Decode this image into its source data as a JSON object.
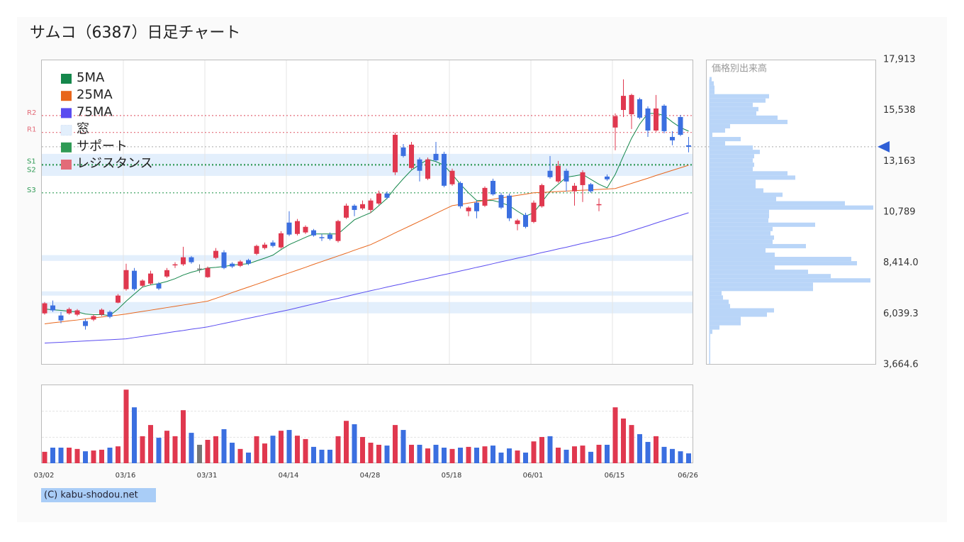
{
  "chart_data": [
    {
      "type": "candlestick",
      "title": "サムコ（6387）日足チャート",
      "ylim": [
        3664.6,
        17913
      ],
      "yticks": [
        {
          "value": 17913,
          "label": "17,913"
        },
        {
          "value": 15538,
          "label": "15,538"
        },
        {
          "value": 13163,
          "label": "13,163"
        },
        {
          "value": 10789,
          "label": "10,789"
        },
        {
          "value": 8414.0,
          "label": "8,414.0"
        },
        {
          "value": 6039.3,
          "label": "6,039.3"
        },
        {
          "value": 3664.6,
          "label": "3,664.6"
        }
      ],
      "colors": {
        "up": "#e0384f",
        "down": "#3b6fe0",
        "flat": "#777777"
      },
      "open": [
        6060,
        6430,
        5960,
        6060,
        6000,
        5700,
        5770,
        6000,
        6130,
        6560,
        7190,
        8050,
        7350,
        7450,
        7450,
        7780,
        8310,
        8350,
        8680,
        8150,
        7750,
        8650,
        8910,
        8380,
        8280,
        8550,
        8840,
        9110,
        9370,
        9140,
        10300,
        9770,
        9840,
        9940,
        9620,
        9740,
        9440,
        10530,
        11090,
        10960,
        10890,
        11190,
        11660,
        12650,
        13810,
        12850,
        13250,
        12350,
        13510,
        13510,
        12090,
        12150,
        10830,
        11230,
        11090,
        12250,
        11590,
        11560,
        10230,
        10660,
        10330,
        11060,
        12720,
        12220,
        12720,
        11760,
        12050,
        12090,
        11130,
        12450,
        14740,
        15560,
        15360,
        16060,
        15630,
        14600,
        15760,
        14300,
        15230,
        13910
      ],
      "high": [
        6590,
        6660,
        6130,
        6330,
        6260,
        5800,
        6000,
        6290,
        6200,
        6960,
        8380,
        8180,
        7650,
        8050,
        7520,
        8180,
        8450,
        9170,
        8740,
        8350,
        8250,
        9110,
        9010,
        8450,
        8550,
        8610,
        9270,
        9370,
        9470,
        9900,
        10830,
        10470,
        10170,
        10000,
        9770,
        9840,
        10430,
        11190,
        11160,
        11330,
        11430,
        11790,
        11760,
        14500,
        13970,
        14070,
        13340,
        13340,
        14070,
        13610,
        12820,
        12220,
        11060,
        11330,
        11990,
        12350,
        11690,
        11660,
        10470,
        10760,
        11330,
        12120,
        13410,
        13180,
        12820,
        12150,
        12750,
        12150,
        11430,
        12550,
        15400,
        16990,
        16320,
        16130,
        15730,
        16260,
        15830,
        14570,
        15330,
        14300
      ],
      "low": [
        6000,
        6130,
        5600,
        6000,
        5930,
        5300,
        5700,
        5930,
        5830,
        6530,
        7120,
        7120,
        7290,
        7390,
        7150,
        7720,
        8180,
        8280,
        8380,
        7950,
        7720,
        8580,
        8120,
        8180,
        8220,
        8310,
        8780,
        9040,
        9140,
        9080,
        9670,
        9700,
        9770,
        9640,
        9440,
        9470,
        9370,
        10470,
        10600,
        10890,
        10760,
        11130,
        11390,
        12520,
        13340,
        12780,
        12220,
        12290,
        13150,
        11950,
        12020,
        10960,
        10600,
        10500,
        11030,
        11560,
        10930,
        10370,
        9940,
        10030,
        10270,
        11000,
        12350,
        12150,
        11760,
        11090,
        11260,
        11690,
        10830,
        12250,
        13680,
        15230,
        14670,
        15130,
        14300,
        14540,
        14470,
        13910,
        14340,
        13580
      ],
      "close": [
        6530,
        6200,
        5730,
        6260,
        6200,
        5470,
        5930,
        6230,
        5900,
        6890,
        8080,
        7190,
        7590,
        7920,
        7220,
        8080,
        8350,
        8680,
        8450,
        8150,
        8180,
        8980,
        8180,
        8250,
        8480,
        8380,
        9210,
        9270,
        9210,
        9800,
        9740,
        10370,
        10100,
        9700,
        9600,
        9540,
        10370,
        11090,
        10890,
        11160,
        11330,
        11660,
        11460,
        14400,
        13410,
        13940,
        12720,
        13250,
        13210,
        12020,
        12720,
        11060,
        11000,
        10830,
        11920,
        11620,
        11000,
        10500,
        10400,
        10100,
        11230,
        12050,
        12420,
        12950,
        12220,
        12020,
        12650,
        11760,
        11160,
        12320,
        15270,
        16220,
        16260,
        15200,
        14600,
        15630,
        14570,
        14140,
        14400,
        13840
      ],
      "series": [
        {
          "name": "5MA",
          "color": "#15874b",
          "values": [
            6260,
            6230,
            6200,
            6160,
            6130,
            6030,
            6000,
            6000,
            5960,
            6260,
            6630,
            6960,
            7290,
            7390,
            7450,
            7550,
            7680,
            7850,
            7980,
            8080,
            8180,
            8210,
            8250,
            8310,
            8350,
            8380,
            8510,
            8640,
            8780,
            9040,
            9270,
            9440,
            9610,
            9770,
            9770,
            9770,
            9770,
            10100,
            10430,
            10600,
            10760,
            11090,
            11430,
            11920,
            12350,
            12750,
            13010,
            13250,
            13150,
            12980,
            12550,
            12090,
            11690,
            11330,
            11330,
            11330,
            11230,
            11090,
            10830,
            10600,
            10760,
            11260,
            11760,
            12090,
            12420,
            12480,
            12550,
            12320,
            12090,
            11920,
            12550,
            13410,
            14240,
            14900,
            15400,
            15400,
            15300,
            15000,
            14740,
            14570
          ]
        },
        {
          "name": "25MA",
          "color": "#e8661c",
          "values": [
            5570,
            5620,
            5660,
            5710,
            5750,
            5800,
            5850,
            5890,
            5940,
            5980,
            6030,
            6090,
            6150,
            6210,
            6270,
            6330,
            6390,
            6450,
            6510,
            6570,
            6630,
            6760,
            6890,
            7030,
            7160,
            7290,
            7420,
            7550,
            7690,
            7820,
            7950,
            8080,
            8210,
            8350,
            8480,
            8610,
            8740,
            8870,
            9010,
            9140,
            9270,
            9450,
            9630,
            9820,
            10000,
            10180,
            10360,
            10540,
            10730,
            10910,
            11090,
            11150,
            11210,
            11270,
            11330,
            11390,
            11450,
            11510,
            11570,
            11630,
            11690,
            11710,
            11730,
            11750,
            11770,
            11790,
            11810,
            11830,
            11850,
            11870,
            11890,
            12010,
            12130,
            12250,
            12370,
            12500,
            12620,
            12740,
            12860,
            12980
          ]
        },
        {
          "name": "75MA",
          "color": "#5a4cf0",
          "values": [
            4670,
            4690,
            4710,
            4730,
            4750,
            4770,
            4790,
            4810,
            4830,
            4850,
            4870,
            4930,
            4980,
            5040,
            5090,
            5150,
            5210,
            5260,
            5320,
            5370,
            5430,
            5510,
            5590,
            5670,
            5750,
            5830,
            5910,
            5990,
            6070,
            6150,
            6230,
            6320,
            6410,
            6500,
            6590,
            6680,
            6760,
            6850,
            6940,
            7030,
            7120,
            7200,
            7290,
            7370,
            7450,
            7540,
            7620,
            7700,
            7790,
            7870,
            7950,
            8040,
            8120,
            8210,
            8290,
            8380,
            8470,
            8550,
            8640,
            8720,
            8810,
            8900,
            8980,
            9070,
            9150,
            9240,
            9330,
            9410,
            9500,
            9580,
            9670,
            9790,
            9910,
            10030,
            10150,
            10280,
            10400,
            10520,
            10640,
            10760
          ]
        }
      ],
      "gaps": {
        "name": "窓",
        "color": "#e3effc",
        "ranges": [
          [
            12480,
            13510
          ],
          [
            8510,
            8780
          ],
          [
            6890,
            7090
          ],
          [
            6060,
            6590
          ]
        ]
      },
      "support": {
        "name": "サポート",
        "color": "#2f9a55",
        "levels": [
          {
            "name": "S1",
            "value": 13020
          },
          {
            "name": "S2",
            "value": 12980
          },
          {
            "name": "S3",
            "value": 11690
          }
        ]
      },
      "resistance": {
        "name": "レジスタンス",
        "color": "#e36b78",
        "levels": [
          {
            "name": "R2",
            "value": 15300
          },
          {
            "name": "R1",
            "value": 14510
          }
        ]
      }
    },
    {
      "type": "bar",
      "categories": [
        "03/02",
        null,
        null,
        null,
        null,
        null,
        null,
        null,
        null,
        null,
        "03/16",
        null,
        null,
        null,
        null,
        null,
        null,
        null,
        null,
        null,
        "03/31",
        null,
        null,
        null,
        null,
        null,
        null,
        null,
        null,
        null,
        "04/14",
        null,
        null,
        null,
        null,
        null,
        null,
        null,
        null,
        null,
        "04/28",
        null,
        null,
        null,
        null,
        null,
        null,
        null,
        null,
        null,
        "05/18",
        null,
        null,
        null,
        null,
        null,
        null,
        null,
        null,
        null,
        "06/01",
        null,
        null,
        null,
        null,
        null,
        null,
        null,
        null,
        null,
        "06/15",
        null,
        null,
        null,
        null,
        null,
        null,
        null,
        null,
        "06/26"
      ],
      "values": [
        0.44,
        0.6,
        0.6,
        0.6,
        0.55,
        0.46,
        0.49,
        0.52,
        0.6,
        0.65,
        2.83,
        2.15,
        1.04,
        1.47,
        0.98,
        1.25,
        1.04,
        2.04,
        1.17,
        0.71,
        0.9,
        1.04,
        1.31,
        0.79,
        0.55,
        0.41,
        1.04,
        0.76,
        1.06,
        1.25,
        1.28,
        1.06,
        0.93,
        0.63,
        0.52,
        0.52,
        1.04,
        1.63,
        1.5,
        1.01,
        0.79,
        0.71,
        0.68,
        1.47,
        1.28,
        0.71,
        0.71,
        0.57,
        0.71,
        0.6,
        0.55,
        0.6,
        0.63,
        0.6,
        0.65,
        0.68,
        0.41,
        0.57,
        0.49,
        0.41,
        0.84,
        1.01,
        1.04,
        0.6,
        0.52,
        0.65,
        0.68,
        0.44,
        0.71,
        0.71,
        2.15,
        1.72,
        1.47,
        1.12,
        0.82,
        1.04,
        0.63,
        0.55,
        0.46,
        0.38
      ],
      "ylim": [
        0,
        3
      ],
      "yticks": [
        1,
        2
      ],
      "grid": true
    },
    {
      "type": "histogram",
      "title": "価格別出来高",
      "color": "#b9d5f8",
      "bins": [
        3700,
        3900,
        4100,
        4300,
        4500,
        4700,
        4900,
        5100,
        5300,
        5500,
        5700,
        5900,
        6100,
        6300,
        6500,
        6700,
        6900,
        7100,
        7300,
        7500,
        7700,
        7900,
        8100,
        8300,
        8500,
        8700,
        8900,
        9100,
        9300,
        9500,
        9700,
        9900,
        10100,
        10300,
        10500,
        10700,
        10900,
        11100,
        11300,
        11500,
        11700,
        11900,
        12100,
        12300,
        12500,
        12700,
        12900,
        13100,
        13300,
        13500,
        13700,
        13900,
        14100,
        14300,
        14500,
        14700,
        14900,
        15100,
        15300,
        15500,
        15700,
        15900,
        16100,
        16300,
        16500,
        16700,
        16900,
        17100
      ],
      "values": [
        1,
        1,
        1,
        1,
        1,
        1,
        1,
        4,
        14,
        44,
        44,
        81,
        91,
        29,
        27,
        19,
        17,
        146,
        146,
        227,
        171,
        139,
        92,
        208,
        200,
        92,
        79,
        136,
        89,
        91,
        86,
        89,
        149,
        83,
        84,
        84,
        231,
        191,
        94,
        103,
        76,
        65,
        65,
        121,
        110,
        61,
        63,
        61,
        63,
        71,
        61,
        22,
        44,
        4,
        22,
        29,
        110,
        96,
        66,
        69,
        61,
        79,
        84,
        7,
        7,
        6,
        3
      ]
    }
  ],
  "credit": "(C) kabu-shodou.net"
}
